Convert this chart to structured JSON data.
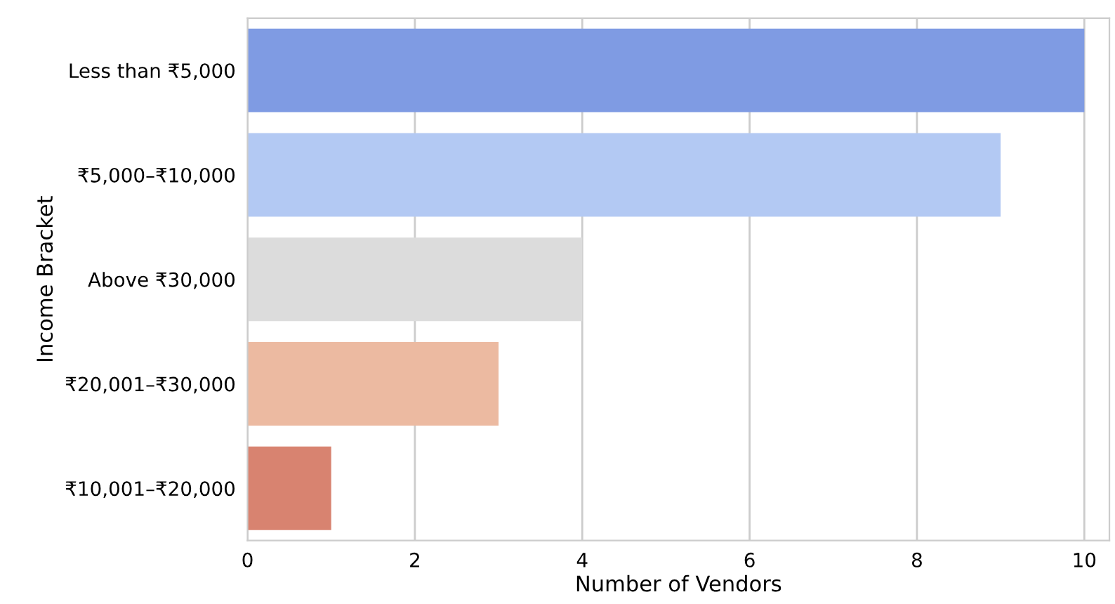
{
  "chart_data": {
    "type": "bar",
    "orientation": "horizontal",
    "xlabel": "Number of Vendors",
    "ylabel": "Income Bracket",
    "categories": [
      "Less than ₹5,000",
      "₹5,000–₹10,000",
      "Above ₹30,000",
      "₹20,001–₹30,000",
      "₹10,001–₹20,000"
    ],
    "values": [
      10,
      9,
      4,
      3,
      1
    ],
    "colors": [
      "#7f9be3",
      "#b3c9f3",
      "#dcdcdc",
      "#ecbaa1",
      "#d88370"
    ],
    "xlim": [
      0,
      10.3
    ],
    "xticks": [
      0,
      2,
      4,
      6,
      8,
      10
    ],
    "grid": "x"
  }
}
